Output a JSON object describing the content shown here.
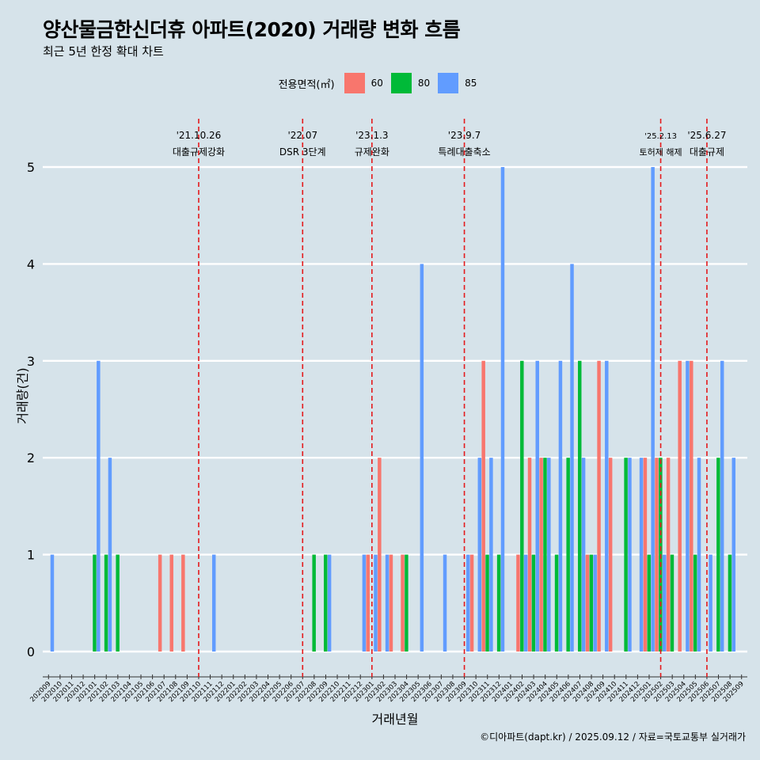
{
  "title": "양산물금한신더휴 아파트(2020) 거래량 변화 흐름",
  "subtitle": "최근 5년 한정 확대 차트",
  "caption": "©디아파트(dapt.kr) / 2025.09.12 / 자료=국토교통부 실거래가",
  "legend": {
    "title": "전용면적(㎡)",
    "items": [
      {
        "label": "60",
        "color": "#f8766d"
      },
      {
        "label": "80",
        "color": "#00ba38"
      },
      {
        "label": "85",
        "color": "#619cff"
      }
    ]
  },
  "chart_data": {
    "type": "bar",
    "xlabel": "거래년월",
    "ylabel": "거래량(건)",
    "ylim": [
      0,
      5
    ],
    "y_ticks": [
      0,
      1,
      2,
      3,
      4,
      5
    ],
    "months": [
      "202009",
      "202010",
      "202011",
      "202012",
      "202101",
      "202102",
      "202103",
      "202104",
      "202105",
      "202106",
      "202107",
      "202108",
      "202109",
      "202110",
      "202111",
      "202112",
      "202201",
      "202202",
      "202203",
      "202204",
      "202205",
      "202206",
      "202207",
      "202208",
      "202209",
      "202210",
      "202211",
      "202212",
      "202301",
      "202302",
      "202303",
      "202304",
      "202305",
      "202306",
      "202307",
      "202308",
      "202309",
      "202310",
      "202311",
      "202312",
      "202401",
      "202402",
      "202403",
      "202404",
      "202405",
      "202406",
      "202407",
      "202408",
      "202409",
      "202410",
      "202411",
      "202412",
      "202501",
      "202502",
      "202503",
      "202504",
      "202505",
      "202506",
      "202507",
      "202508",
      "202509"
    ],
    "series": [
      {
        "name": "60",
        "color": "#f8766d",
        "values": [
          0,
          0,
          0,
          0,
          0,
          0,
          0,
          0,
          0,
          0,
          1,
          1,
          1,
          0,
          0,
          0,
          0,
          0,
          0,
          0,
          0,
          0,
          0,
          0,
          0,
          0,
          0,
          0,
          1,
          2,
          1,
          1,
          0,
          0,
          0,
          0,
          0,
          1,
          3,
          0,
          0,
          1,
          2,
          2,
          0,
          0,
          0,
          1,
          3,
          2,
          0,
          0,
          2,
          2,
          2,
          3,
          3,
          0,
          0,
          0,
          0
        ]
      },
      {
        "name": "80",
        "color": "#00ba38",
        "values": [
          0,
          0,
          0,
          0,
          1,
          1,
          1,
          0,
          0,
          0,
          0,
          0,
          0,
          0,
          0,
          0,
          0,
          0,
          0,
          0,
          0,
          0,
          0,
          1,
          1,
          0,
          0,
          0,
          0,
          0,
          0,
          1,
          0,
          0,
          0,
          0,
          0,
          0,
          1,
          1,
          0,
          3,
          1,
          2,
          1,
          2,
          3,
          1,
          0,
          0,
          2,
          0,
          1,
          2,
          1,
          0,
          1,
          0,
          2,
          1,
          0
        ]
      },
      {
        "name": "85",
        "color": "#619cff",
        "values": [
          1,
          0,
          0,
          0,
          3,
          2,
          0,
          0,
          0,
          0,
          0,
          0,
          0,
          0,
          1,
          0,
          0,
          0,
          0,
          0,
          0,
          0,
          0,
          0,
          1,
          0,
          0,
          1,
          1,
          1,
          0,
          0,
          4,
          0,
          1,
          0,
          1,
          2,
          2,
          5,
          0,
          1,
          3,
          2,
          3,
          4,
          2,
          1,
          3,
          0,
          2,
          2,
          5,
          1,
          0,
          3,
          2,
          1,
          3,
          2,
          0
        ]
      }
    ],
    "annotations": [
      {
        "month": "202110",
        "label": "'21.10.26",
        "sub": "대출규제강화"
      },
      {
        "month": "202207",
        "label": "'22.07",
        "sub": "DSR 3단계"
      },
      {
        "month": "202301",
        "label": "'23.1.3",
        "sub": "규제완화"
      },
      {
        "month": "202309",
        "label": "'23.9.7",
        "sub": "특례대출축소"
      },
      {
        "month": "202502",
        "label": "'25.2.13",
        "sub": "토허제 해제"
      },
      {
        "month": "202506",
        "label": "'25.6.27",
        "sub": "대출규제"
      }
    ]
  }
}
